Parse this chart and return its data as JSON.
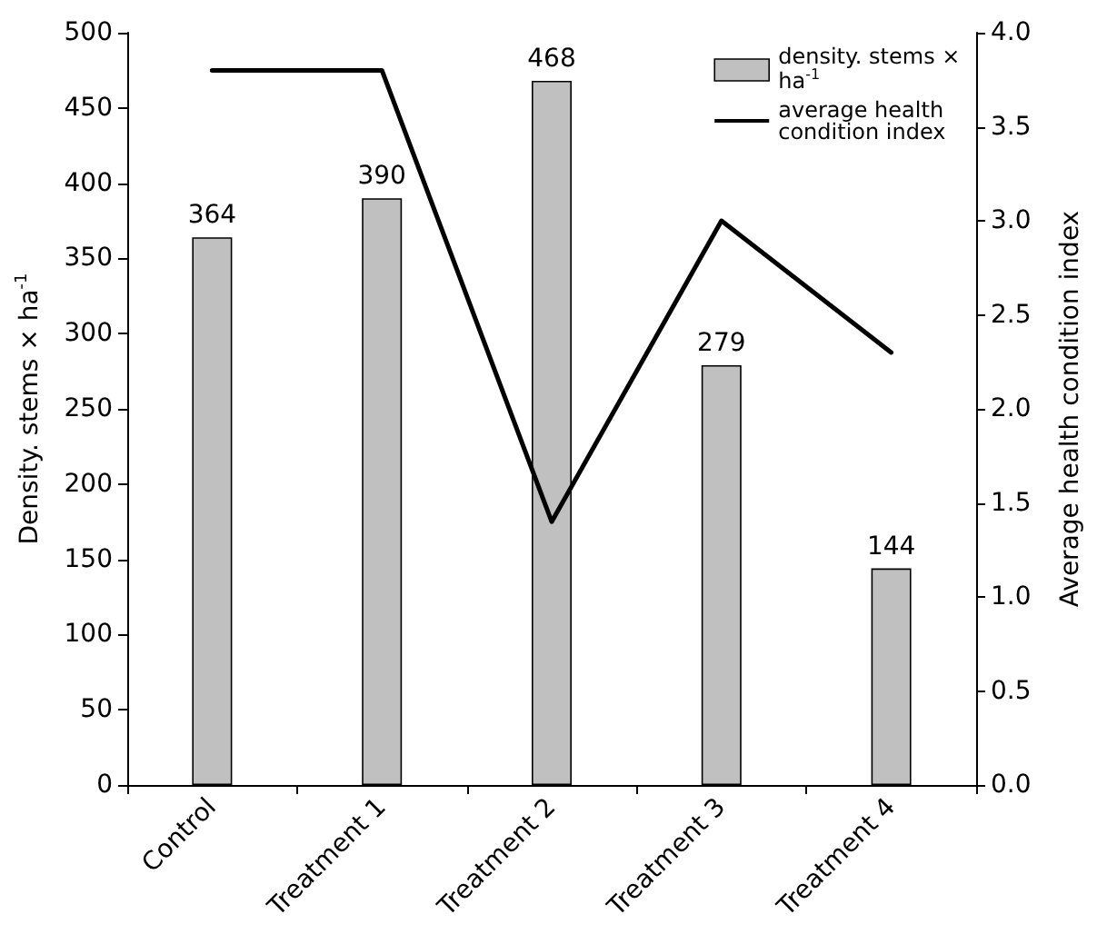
{
  "chart_data": {
    "type": "bar",
    "categories": [
      "Control",
      "Treatment 1",
      "Treatment 2",
      "Treatment 3",
      "Treatment 4"
    ],
    "series": [
      {
        "name": "density. stems × ha$^{-1}$",
        "color": "#c0c0c0",
        "values": [
          364,
          390,
          468,
          279,
          144
        ],
        "value_labels": [
          "364",
          "390",
          "468",
          "279",
          "144"
        ]
      },
      {
        "name": "average health condition index",
        "type": "line",
        "axis": "y2",
        "color": "#000000",
        "values": [
          3.8,
          3.8,
          1.4,
          3.0,
          2.3
        ]
      }
    ],
    "ylabel": "Density. stems × ha$^{-1}$",
    "y2label": "Average health condition index",
    "ylim": [
      0,
      500
    ],
    "yticks": [
      0,
      50,
      100,
      150,
      200,
      250,
      300,
      350,
      400,
      450,
      500
    ],
    "y2lim": [
      0,
      4
    ],
    "y2ticks": [
      {
        "value": 0,
        "label": "0.0"
      },
      {
        "value": 0.5,
        "label": "0.5"
      },
      {
        "value": 1,
        "label": "1.0"
      },
      {
        "value": 1.5,
        "label": "1.5"
      },
      {
        "value": 2,
        "label": "2.0"
      },
      {
        "value": 2.5,
        "label": "2.5"
      },
      {
        "value": 3,
        "label": "3.0"
      },
      {
        "value": 3.5,
        "label": "3.5"
      },
      {
        "value": 4,
        "label": "4.0"
      }
    ],
    "legend": "top right",
    "marker": "none",
    "line_style": "solid"
  }
}
